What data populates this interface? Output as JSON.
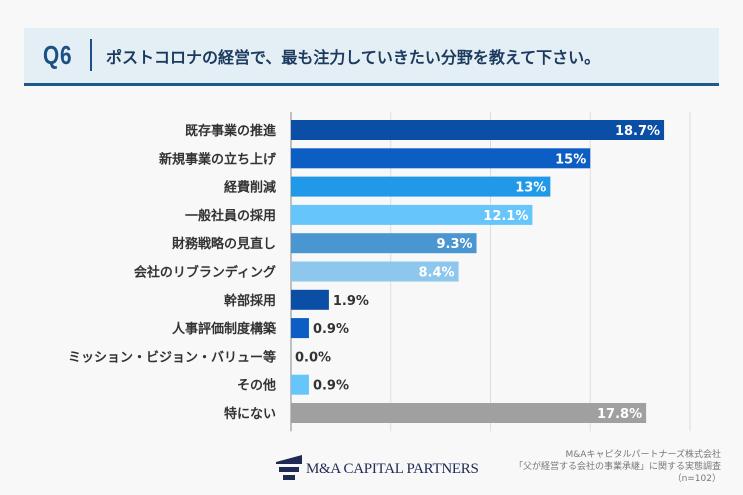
{
  "header": {
    "question": "Q6",
    "title": "ポストコロナの経営で、最も注力していきたい分野を教えて下さい。"
  },
  "chart_data": {
    "type": "bar",
    "orientation": "horizontal",
    "categories": [
      "既存事業の推進",
      "新規事業の立ち上げ",
      "経費削減",
      "一般社員の採用",
      "財務戦略の見直し",
      "会社のリブランディング",
      "幹部採用",
      "人事評価制度構築",
      "ミッション・ビジョン・バリュー等",
      "その他",
      "特にない"
    ],
    "values": [
      18.7,
      15,
      13,
      12.1,
      9.3,
      8.4,
      1.9,
      0.9,
      0.0,
      0.9,
      17.8
    ],
    "labels": [
      "18.7%",
      "15%",
      "13%",
      "12.1%",
      "9.3%",
      "8.4%",
      "1.9%",
      "0.9%",
      "0.0%",
      "0.9%",
      "17.8%"
    ],
    "colors": [
      "#0a4ea6",
      "#0c5dc4",
      "#209ae8",
      "#66c5fb",
      "#4a96d0",
      "#8ec7ee",
      "#0a4ea6",
      "#0c5dc4",
      "#66c5fb",
      "#66c5fb",
      "#a0a0a0"
    ],
    "xlim": [
      0,
      20
    ],
    "grid": true,
    "unit": "%"
  },
  "footer": {
    "logo_text": "M&A CAPITAL PARTNERS",
    "source_lines": [
      "M&Aキャピタルパートナーズ株式会社",
      "「父が経営する会社の事業承継」に関する実態調査",
      "（n=102）"
    ]
  }
}
